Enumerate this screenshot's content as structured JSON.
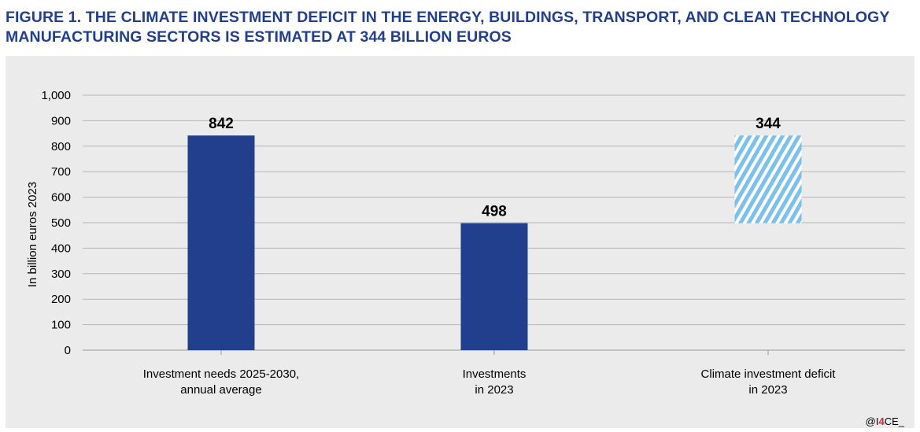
{
  "figure": {
    "title": "FIGURE 1. THE CLIMATE INVESTMENT DEFICIT IN THE ENERGY, BUILDINGS, TRANSPORT, AND CLEAN TECHNOLOGY MANUFACTURING SECTORS IS ESTIMATED AT 344 BILLION EUROS",
    "credit_prefix": "@I",
    "credit_highlight": "4",
    "credit_suffix": "CE_"
  },
  "colors": {
    "title": "#213f8c",
    "bar": "#213f8c",
    "deficit_hatch": "#7cc0ec",
    "panel_bg": "#ebebeb",
    "grid": "#b5b5b5"
  },
  "chart_data": {
    "type": "bar",
    "title": "",
    "xlabel": "",
    "ylabel": "In billion euros 2023",
    "ylim": [
      0,
      1000
    ],
    "yticks": [
      0,
      100,
      200,
      300,
      400,
      500,
      600,
      700,
      800,
      900,
      1000
    ],
    "ytick_labels": [
      "0",
      "100",
      "200",
      "300",
      "400",
      "500",
      "600",
      "700",
      "800",
      "900",
      "1,000"
    ],
    "grid": true,
    "categories": [
      [
        "Investment needs 2025-2030,",
        "annual average"
      ],
      [
        "Investments",
        "in 2023"
      ],
      [
        "Climate investment deficit",
        "in 2023"
      ]
    ],
    "bars": [
      {
        "base": 0,
        "value": 842,
        "label": "842",
        "style": "solid"
      },
      {
        "base": 0,
        "value": 498,
        "label": "498",
        "style": "solid"
      },
      {
        "base": 498,
        "value": 344,
        "label": "344",
        "style": "hatched"
      }
    ]
  }
}
